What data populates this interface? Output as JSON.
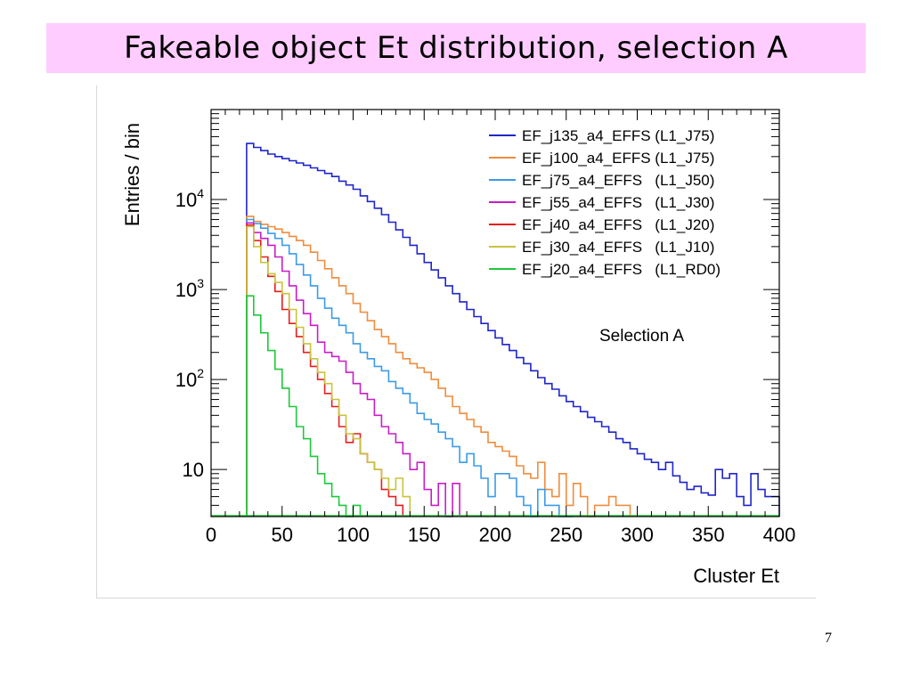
{
  "slide": {
    "title": "Fakeable object Et distribution, selection A",
    "page_number": "7"
  },
  "chart_data": {
    "type": "line",
    "style": "step histogram",
    "xlabel": "Cluster Et",
    "ylabel": "Entries / bin",
    "annotation": "Selection A",
    "xlim": [
      0,
      400
    ],
    "ylim": [
      3,
      100000
    ],
    "yscale": "log",
    "x_ticks": [
      "0",
      "50",
      "100",
      "150",
      "200",
      "250",
      "300",
      "350",
      "400"
    ],
    "y_ticks": [
      {
        "value": 10,
        "base": "10",
        "exp": ""
      },
      {
        "value": 100,
        "base": "10",
        "exp": "2"
      },
      {
        "value": 1000,
        "base": "10",
        "exp": "3"
      },
      {
        "value": 10000,
        "base": "10",
        "exp": "4"
      }
    ],
    "grid": false,
    "legend_position": "top-right",
    "bin_width": 5,
    "series": [
      {
        "name": "EF_j135_a4_EFFS (L1_J75)",
        "color": "#1f26c8",
        "x": [
          25,
          30,
          35,
          40,
          45,
          50,
          55,
          60,
          65,
          70,
          75,
          80,
          85,
          90,
          95,
          100,
          105,
          110,
          115,
          120,
          125,
          130,
          135,
          140,
          145,
          150,
          155,
          160,
          165,
          170,
          175,
          180,
          185,
          190,
          195,
          200,
          205,
          210,
          215,
          220,
          225,
          230,
          235,
          240,
          245,
          250,
          255,
          260,
          265,
          270,
          275,
          280,
          285,
          290,
          295,
          300,
          305,
          310,
          315,
          320,
          325,
          330,
          335,
          340,
          345,
          350,
          355,
          360,
          365,
          370,
          375,
          380,
          385,
          390,
          395
        ],
        "values": [
          42000,
          38000,
          35000,
          32000,
          30000,
          28500,
          27000,
          25500,
          24000,
          22500,
          21000,
          19500,
          18000,
          16000,
          14500,
          13000,
          11000,
          9500,
          8000,
          6800,
          5600,
          4600,
          3800,
          3100,
          2500,
          2000,
          1650,
          1350,
          1100,
          900,
          730,
          600,
          500,
          420,
          350,
          290,
          245,
          210,
          175,
          150,
          125,
          105,
          90,
          78,
          66,
          57,
          50,
          44,
          38,
          34,
          30,
          26,
          22,
          20,
          17,
          15,
          13,
          12,
          10,
          12,
          8.5,
          7.2,
          6,
          6.5,
          5.5,
          5.2,
          10,
          8,
          9,
          5,
          4,
          9,
          6,
          5,
          5
        ]
      },
      {
        "name": "EF_j100_a4_EFFS (L1_J75)",
        "color": "#f08c3c",
        "x": [
          25,
          30,
          35,
          40,
          45,
          50,
          55,
          60,
          65,
          70,
          75,
          80,
          85,
          90,
          95,
          100,
          105,
          110,
          115,
          120,
          125,
          130,
          135,
          140,
          145,
          150,
          155,
          160,
          165,
          170,
          175,
          180,
          185,
          190,
          195,
          200,
          205,
          210,
          215,
          220,
          225,
          230,
          235,
          240,
          245,
          250,
          255,
          260,
          265,
          270,
          275,
          280,
          285,
          290
        ],
        "values": [
          6500,
          5700,
          5300,
          5000,
          4700,
          4300,
          3900,
          3500,
          3100,
          2600,
          2100,
          1700,
          1350,
          1100,
          900,
          700,
          560,
          450,
          360,
          300,
          250,
          200,
          170,
          150,
          135,
          120,
          100,
          80,
          65,
          50,
          42,
          36,
          30,
          26,
          20,
          18,
          16,
          14,
          11,
          9,
          8,
          12,
          6,
          5,
          9,
          4,
          7,
          5,
          3,
          4,
          4,
          5,
          4,
          4
        ]
      },
      {
        "name": "EF_j75_a4_EFFS   (L1_J50)",
        "color": "#3c9be6",
        "x": [
          25,
          30,
          35,
          40,
          45,
          50,
          55,
          60,
          65,
          70,
          75,
          80,
          85,
          90,
          95,
          100,
          105,
          110,
          115,
          120,
          125,
          130,
          135,
          140,
          145,
          150,
          155,
          160,
          165,
          170,
          175,
          180,
          185,
          190,
          195,
          200,
          205,
          210,
          215,
          220,
          225,
          230,
          235,
          240,
          245,
          250
        ],
        "values": [
          6000,
          5400,
          4800,
          4200,
          3700,
          3100,
          2500,
          1900,
          1450,
          1100,
          800,
          620,
          480,
          400,
          330,
          250,
          200,
          170,
          140,
          125,
          95,
          80,
          70,
          55,
          42,
          36,
          32,
          26,
          22,
          18,
          12,
          15,
          11,
          8,
          5,
          9,
          9,
          8,
          5,
          4,
          3,
          6,
          4,
          4,
          3,
          3
        ]
      },
      {
        "name": "EF_j55_a4_EFFS   (L1_J30)",
        "color": "#c81ec8",
        "x": [
          25,
          30,
          35,
          40,
          45,
          50,
          55,
          60,
          65,
          70,
          75,
          80,
          85,
          90,
          95,
          100,
          105,
          110,
          115,
          120,
          125,
          130,
          135,
          140,
          145,
          150,
          155,
          160,
          165,
          170
        ],
        "values": [
          5500,
          4300,
          3700,
          3100,
          2300,
          1600,
          1100,
          760,
          540,
          400,
          260,
          200,
          180,
          160,
          120,
          90,
          70,
          60,
          40,
          30,
          25,
          20,
          15,
          10,
          12,
          6,
          4,
          7,
          3,
          7
        ]
      },
      {
        "name": "EF_j40_a4_EFFS   (L1_J20)",
        "color": "#e61e1e",
        "x": [
          25,
          30,
          35,
          40,
          45,
          50,
          55,
          60,
          65,
          70,
          75,
          80,
          85,
          90,
          95,
          100,
          105,
          110,
          115,
          120,
          125,
          130
        ],
        "values": [
          5200,
          3500,
          2300,
          1400,
          950,
          600,
          420,
          300,
          200,
          140,
          100,
          70,
          50,
          30,
          20,
          25,
          15,
          12,
          10,
          6,
          5,
          4
        ]
      },
      {
        "name": "EF_j30_a4_EFFS   (L1_J10)",
        "color": "#c8c33c",
        "x": [
          25,
          30,
          35,
          40,
          45,
          50,
          55,
          60,
          65,
          70,
          75,
          80,
          85,
          90,
          95,
          100,
          105,
          110,
          115,
          120,
          125,
          130,
          135
        ],
        "values": [
          5000,
          3000,
          2000,
          1500,
          1200,
          900,
          600,
          380,
          250,
          170,
          120,
          90,
          60,
          40,
          25,
          22,
          15,
          12,
          10,
          8,
          6,
          8,
          5
        ]
      },
      {
        "name": "EF_j20_a4_EFFS   (L1_RD0)",
        "color": "#1ec83c",
        "x": [
          25,
          30,
          35,
          40,
          45,
          50,
          55,
          60,
          65,
          70,
          75,
          80,
          85,
          90,
          95,
          100
        ],
        "values": [
          850,
          520,
          330,
          210,
          130,
          80,
          50,
          30,
          22,
          14,
          9,
          7,
          5,
          4,
          3,
          4
        ]
      }
    ]
  }
}
